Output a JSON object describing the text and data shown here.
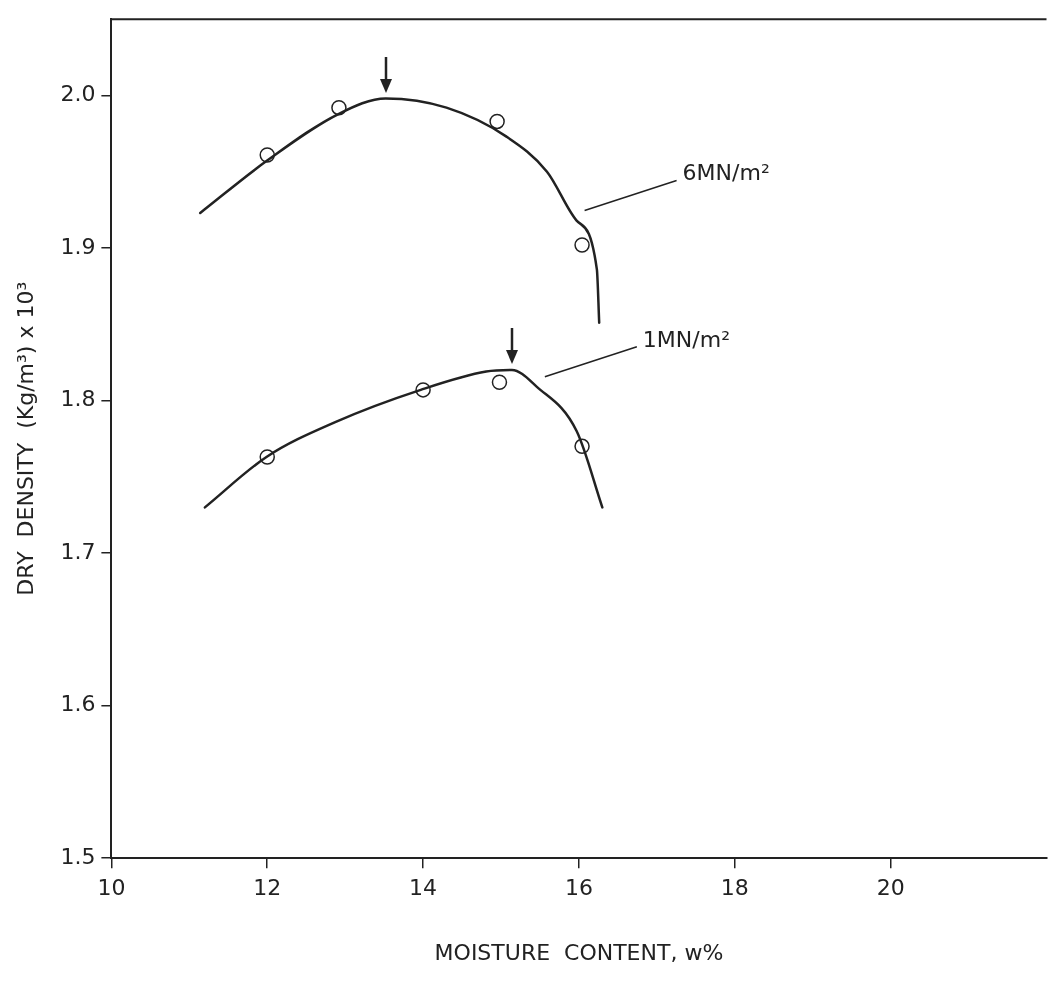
{
  "chart_data": {
    "type": "line",
    "xlabel": "MOISTURE  CONTENT, w%",
    "ylabel": "DRY  DENSITY  (Kg/m³) x 10³",
    "xlim": [
      10,
      22
    ],
    "xticks": [
      10,
      12,
      14,
      16,
      18,
      20
    ],
    "ylim": [
      1.5,
      2.05
    ],
    "yticks": [
      1.5,
      1.6,
      1.7,
      1.8,
      1.9,
      {
        "value": 2,
        "label": "2.0"
      }
    ],
    "grid": false,
    "legend": false,
    "series": [
      {
        "type": "scatter",
        "marker": "circle",
        "color": "#222222",
        "x": [
          12,
          12.92,
          14.95,
          16.04
        ],
        "values": [
          1.961,
          1.992,
          1.983,
          1.902
        ]
      },
      {
        "type": "scatter",
        "marker": "circle",
        "color": "#222222",
        "x": [
          12,
          14,
          14.98,
          16.04
        ],
        "values": [
          1.763,
          1.807,
          1.812,
          1.77
        ]
      },
      {
        "type": "line",
        "name": "6MN/m²",
        "color": "#222222",
        "marker": "none",
        "x": [
          11.14,
          11.99,
          12.92,
          13.52,
          14.3,
          15.07,
          15.59,
          15.97,
          16.23,
          16.26
        ],
        "values": [
          1.923,
          1.957,
          1.988,
          1.998,
          1.992,
          1.973,
          1.95,
          1.918,
          1.886,
          1.851
        ]
      },
      {
        "type": "line",
        "name": "1MN/m²",
        "color": "#222222",
        "marker": "none",
        "x": [
          11.2,
          11.99,
          12.88,
          13.97,
          14.81,
          15.14,
          15.46,
          15.97,
          16.3
        ],
        "values": [
          1.73,
          1.763,
          1.786,
          1.807,
          1.819,
          1.82,
          1.809,
          1.78,
          1.73
        ]
      }
    ]
  }
}
